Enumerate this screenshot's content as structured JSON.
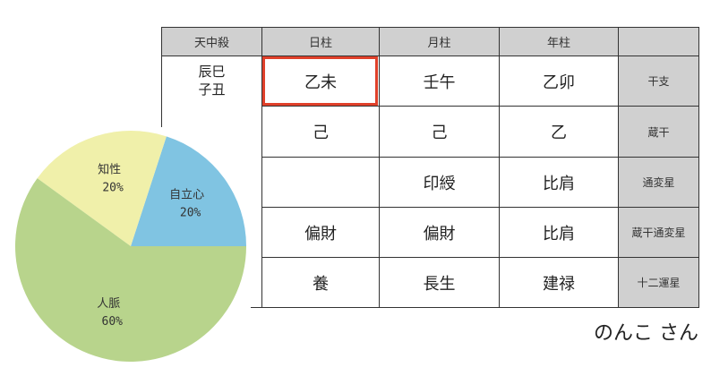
{
  "table": {
    "headers": [
      "天中殺",
      "日柱",
      "月柱",
      "年柱",
      ""
    ],
    "tenchusatsu": [
      "辰巳",
      "子丑"
    ],
    "rows": [
      {
        "label": "干支",
        "values": [
          "乙未",
          "壬午",
          "乙卯"
        ]
      },
      {
        "label": "蔵干",
        "values": [
          "己",
          "己",
          "乙"
        ]
      },
      {
        "label": "通変星",
        "values": [
          "",
          "印綬",
          "比肩"
        ]
      },
      {
        "label": "蔵干通変星",
        "values": [
          "偏財",
          "偏財",
          "比肩"
        ]
      },
      {
        "label": "十二運星",
        "values": [
          "養",
          "長生",
          "建禄"
        ]
      }
    ],
    "highlight_color": "#e0402a"
  },
  "name": "のんこ さん",
  "chart_data": {
    "type": "pie",
    "slices": [
      {
        "label": "自立心",
        "value": 20,
        "text": "20%",
        "color": "#80c4e2"
      },
      {
        "label": "知性",
        "value": 20,
        "text": "20%",
        "color": "#f0f0aa"
      },
      {
        "label": "人脈",
        "value": 60,
        "text": "60%",
        "color": "#b8d48c"
      }
    ]
  }
}
